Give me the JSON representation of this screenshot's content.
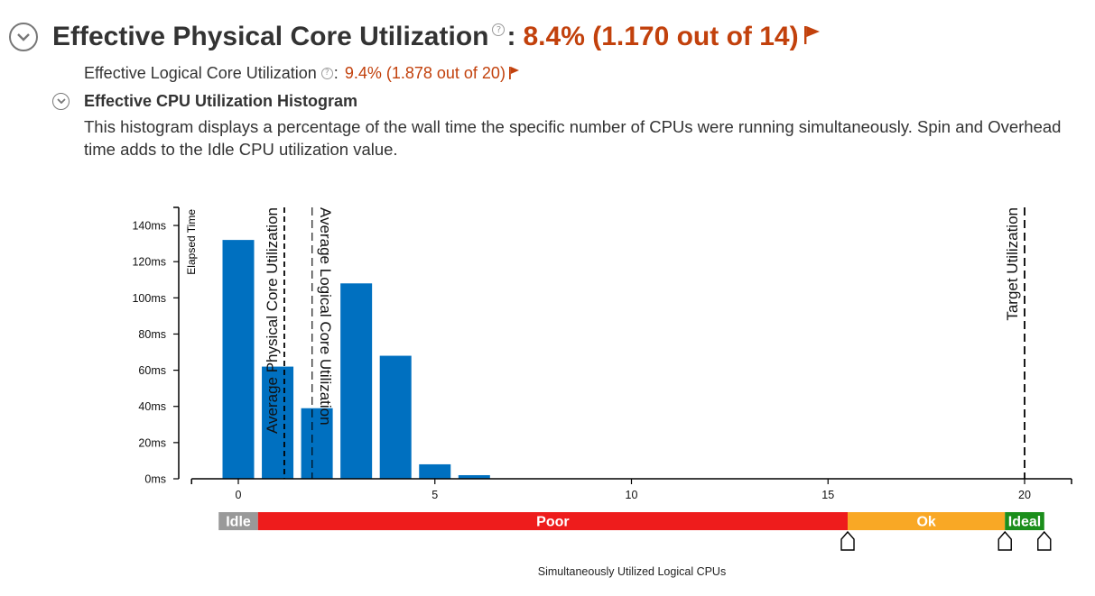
{
  "header": {
    "title": "Effective Physical Core Utilization",
    "value": "8.4% (1.170 out of 14)",
    "help_glyph": "?",
    "colon": ":"
  },
  "logical": {
    "label": "Effective Logical Core Utilization",
    "value": "9.4% (1.878 out of 20)",
    "colon": ":"
  },
  "histogram": {
    "title": "Effective CPU Utilization Histogram",
    "description": "This histogram displays a percentage of the wall time the specific number of CPUs were running simultaneously. Spin and Overhead time adds to the Idle CPU utilization value."
  },
  "colors": {
    "bar": "#0070c0",
    "accent": "#c2410c",
    "idle": "#999999",
    "poor": "#ee1c1c",
    "ok": "#f9a825",
    "ideal": "#1b8e1b"
  },
  "chart_data": {
    "type": "bar",
    "x": [
      0,
      1,
      2,
      3,
      4,
      5,
      6
    ],
    "values": [
      132,
      62,
      39,
      108,
      68,
      8,
      2
    ],
    "xlim": [
      -0.5,
      21.2
    ],
    "ylim": [
      0,
      150
    ],
    "x_ticks": [
      0,
      5,
      10,
      15,
      20
    ],
    "y_ticks": [
      0,
      20,
      40,
      60,
      80,
      100,
      120,
      140
    ],
    "y_tick_labels": [
      "0ms",
      "20ms",
      "40ms",
      "60ms",
      "80ms",
      "100ms",
      "120ms",
      "140ms"
    ],
    "xlabel": "Simultaneously Utilized Logical CPUs",
    "ylabel": "Elapsed Time",
    "reference_lines": [
      {
        "label": "Average Physical Core Utilization",
        "x": 1.17
      },
      {
        "label": "Average Logical Core Utilization",
        "x": 1.878
      },
      {
        "label": "Target Utilization",
        "x": 20
      }
    ],
    "utilization_bands": [
      {
        "label": "Idle",
        "from": -0.5,
        "to": 0.5
      },
      {
        "label": "Poor",
        "from": 0.5,
        "to": 15.5
      },
      {
        "label": "Ok",
        "from": 15.5,
        "to": 19.5
      },
      {
        "label": "Ideal",
        "from": 19.5,
        "to": 20.5
      }
    ],
    "band_handles": [
      15.5,
      19.5,
      20.5
    ]
  }
}
